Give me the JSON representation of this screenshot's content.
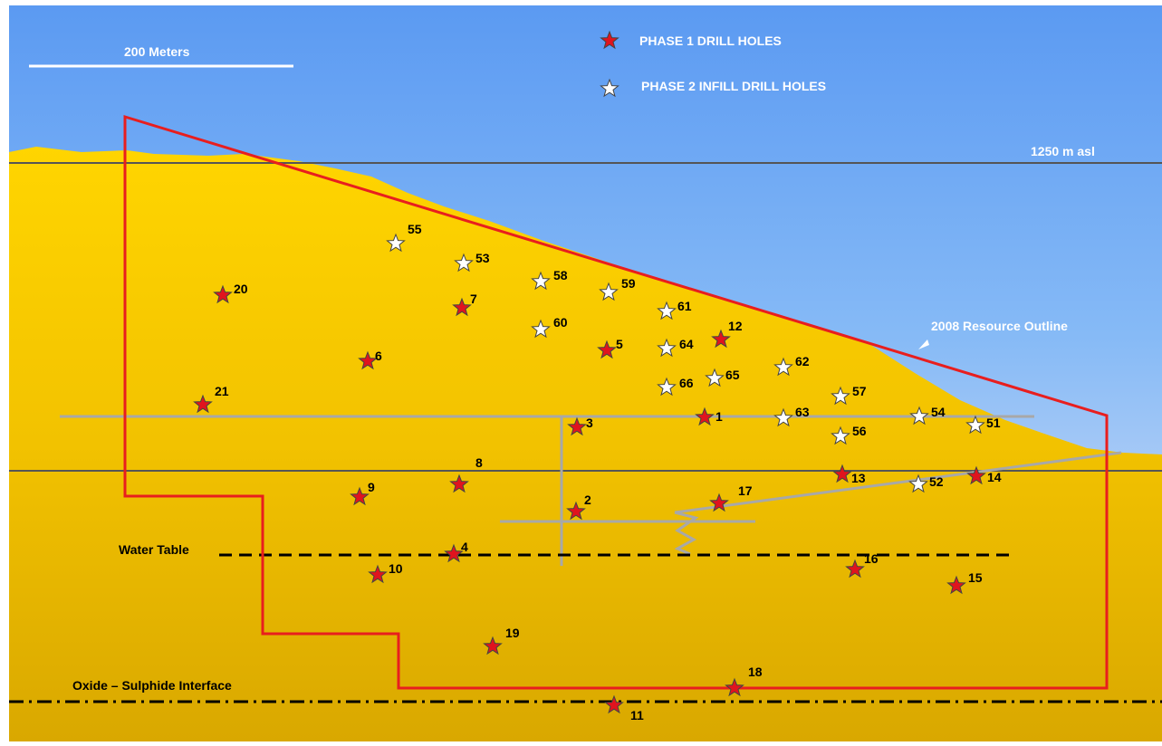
{
  "scale_bar": {
    "label": "200 Meters"
  },
  "legend": {
    "phase1": {
      "label": "PHASE 1 DRILL HOLES",
      "color": "#e0141e"
    },
    "phase2": {
      "label": "PHASE 2 INFILL DRILL HOLES",
      "color": "#ffffff"
    }
  },
  "labels": {
    "elevation": "1250 m asl",
    "resource_outline": "2008 Resource Outline",
    "water_table": "Water Table",
    "oxide_interface": "Oxide – Sulphide Interface"
  },
  "colors": {
    "sky_top": "#5b9af2",
    "sky_bottom": "#eceaf8",
    "ground_top": "#ffd200",
    "ground_bottom": "#d9a800",
    "outline": "#e81e1e",
    "level_line": "#555555",
    "workings": "#a8a8a8"
  },
  "holes": [
    {
      "id": "1",
      "phase": 1
    },
    {
      "id": "2",
      "phase": 1
    },
    {
      "id": "3",
      "phase": 1
    },
    {
      "id": "4",
      "phase": 1
    },
    {
      "id": "5",
      "phase": 1
    },
    {
      "id": "6",
      "phase": 1
    },
    {
      "id": "7",
      "phase": 1
    },
    {
      "id": "8",
      "phase": 1
    },
    {
      "id": "9",
      "phase": 1
    },
    {
      "id": "10",
      "phase": 1
    },
    {
      "id": "11",
      "phase": 1
    },
    {
      "id": "12",
      "phase": 1
    },
    {
      "id": "13",
      "phase": 1
    },
    {
      "id": "14",
      "phase": 1
    },
    {
      "id": "15",
      "phase": 1
    },
    {
      "id": "16",
      "phase": 1
    },
    {
      "id": "17",
      "phase": 1
    },
    {
      "id": "18",
      "phase": 1
    },
    {
      "id": "19",
      "phase": 1
    },
    {
      "id": "20",
      "phase": 1
    },
    {
      "id": "21",
      "phase": 1
    },
    {
      "id": "51",
      "phase": 2
    },
    {
      "id": "52",
      "phase": 2
    },
    {
      "id": "53",
      "phase": 2
    },
    {
      "id": "54",
      "phase": 2
    },
    {
      "id": "55",
      "phase": 2
    },
    {
      "id": "56",
      "phase": 2
    },
    {
      "id": "57",
      "phase": 2
    },
    {
      "id": "58",
      "phase": 2
    },
    {
      "id": "59",
      "phase": 2
    },
    {
      "id": "60",
      "phase": 2
    },
    {
      "id": "61",
      "phase": 2
    },
    {
      "id": "62",
      "phase": 2
    },
    {
      "id": "63",
      "phase": 2
    },
    {
      "id": "64",
      "phase": 2
    },
    {
      "id": "65",
      "phase": 2
    },
    {
      "id": "66",
      "phase": 2
    }
  ]
}
